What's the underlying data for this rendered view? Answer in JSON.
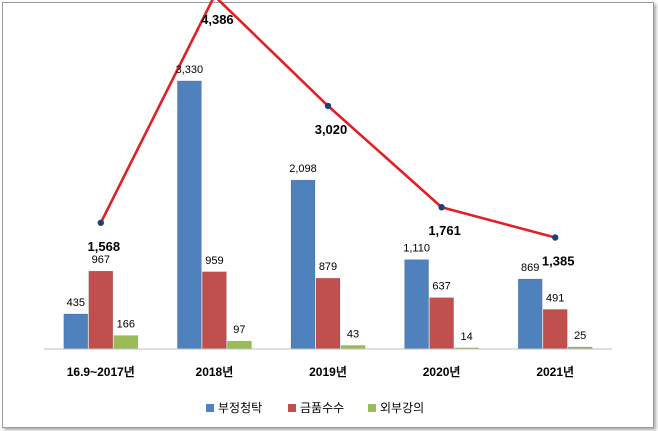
{
  "chart_data": {
    "type": "bar",
    "title": "",
    "xlabel": "",
    "ylabel": "",
    "ylim": [
      0,
      4400
    ],
    "grid": false,
    "legend_position": "bottom",
    "categories": [
      "16.9~2017년",
      "2018년",
      "2019년",
      "2020년",
      "2021년"
    ],
    "series": [
      {
        "name": "부정청탁",
        "color": "#4F81BD",
        "values": [
          435,
          3330,
          2098,
          1110,
          869
        ],
        "labels": [
          "435",
          "3,330",
          "2,098",
          "1,110",
          "869"
        ]
      },
      {
        "name": "금품수수",
        "color": "#C0504D",
        "values": [
          967,
          959,
          879,
          637,
          491
        ],
        "labels": [
          "967",
          "959",
          "879",
          "637",
          "491"
        ]
      },
      {
        "name": "외부강의",
        "color": "#9BBB59",
        "values": [
          166,
          97,
          43,
          14,
          25
        ],
        "labels": [
          "166",
          "97",
          "43",
          "14",
          "25"
        ]
      }
    ],
    "total_line": {
      "type": "line",
      "color": "#E31E24",
      "marker_color": "#1F3D7A",
      "values": [
        1568,
        4386,
        3020,
        1761,
        1385
      ],
      "labels": [
        "1,568",
        "4,386",
        "3,020",
        "1,761",
        "1,385"
      ]
    }
  }
}
